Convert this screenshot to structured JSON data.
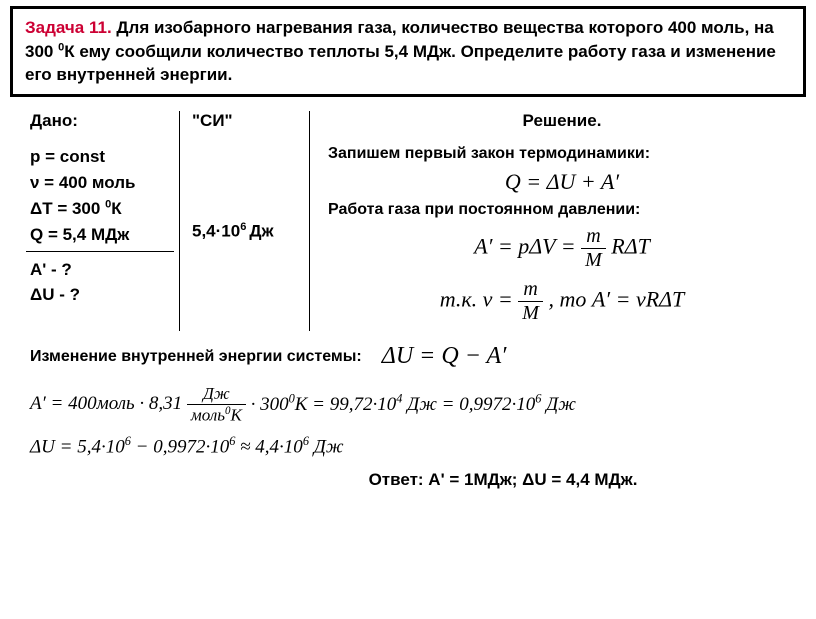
{
  "problem": {
    "number": "Задача 11.",
    "text": "Для изобарного нагревания газа, количество вещества которого 400 моль, на 300 <sup>0</sup>К ему сообщили количество теплоты 5,4 МДж. Определите работу газа и изменение его внутренней энергии."
  },
  "given": {
    "label": "Дано:",
    "p": "p = const",
    "nu": "ν = 400 моль",
    "dT": "ΔT = 300 <sup>0</sup>К",
    "Q": "Q = 5,4 МДж",
    "A": "А' - ?",
    "dU": "ΔU - ?"
  },
  "si": {
    "label": "\"СИ\"",
    "Q": "5,4·10<sup>6 </sup>Дж"
  },
  "solution": {
    "label": "Решение.",
    "line1": "Запишем первый закон термодинамики:",
    "eq1": "Q = ΔU + A′",
    "line2": "Работа газа при постоянном давлении:",
    "eq2_left": "A′ = pΔV",
    "eq2_frac_num": "m",
    "eq2_frac_den": "M",
    "eq2_right": "RΔT",
    "eq3_left": "т.к. ν",
    "eq3_frac_num": "m",
    "eq3_frac_den": "M",
    "eq3_mid": ", то A′ = νRΔT",
    "line3": "Изменение внутренней энергии системы:",
    "eq4": "ΔU = Q − A′"
  },
  "calc": {
    "a_prime": "A′ = 400моль · 8,31",
    "frac_num": "Дж",
    "frac_den": "моль<sup>0</sup>К",
    "a_rest": "· 300<sup>0</sup>К = 99,72·10<sup>4</sup> Дж = 0,9972·10<sup>6</sup> Дж",
    "dU": "ΔU = 5,4·10<sup>6</sup> − 0,9972·10<sup>6</sup> ≈ 4,4·10<sup>6</sup> Дж"
  },
  "answer": {
    "label": "Ответ:",
    "text": "А' = 1МДж; ΔU = 4,4 МДж."
  }
}
